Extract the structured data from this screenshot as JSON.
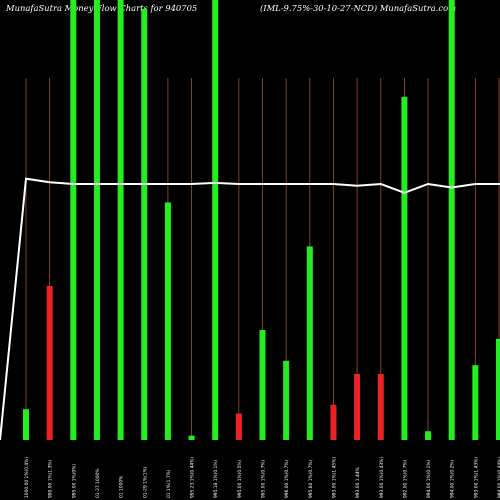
{
  "header": {
    "left_title": "MunafaSutra  Money Flow  Charts for 940705",
    "right_title": "(IML-9.75%-30-10-27-NCD) MunafaSutra.com"
  },
  "colors": {
    "background": "#000000",
    "up": "#22ee22",
    "down": "#ee2222",
    "gridline": "#a0522d",
    "price_line": "#ffffff"
  },
  "chart_data": {
    "type": "bar",
    "title": "MunafaSutra  Money Flow  Charts for 940705",
    "ylim": [
      0,
      100
    ],
    "categories": [
      "1000.00 1%(0.4%)",
      "990.00 1%(1.3%)",
      "995.00 1%(0%)",
      "01-27 1000%",
      "01 1000%",
      "01-29 1%(1%)",
      "01 1%(1.7%)",
      "995.23 1%(0.44%)",
      "995.18 1%(0.1%)",
      "995.00 1%(0.5%)",
      "995.00 1%(0.7%)",
      "996.00 1%(0.7%)",
      "995.80 1%(0.7%)",
      "993.00 1%(1.45%)",
      "993.00 1.44%",
      "993.00 1%(0.43%)",
      "992.00 1%(0.7%)",
      "994.00 1%(0.1%)",
      "994.00 1%(0.2%)",
      "993.00 1%(1.43%)",
      "994.00 1%(0.44%)",
      "993.00 1%(0%)"
    ],
    "series": [
      {
        "values": [
          7,
          35,
          100,
          100,
          100,
          98,
          54,
          1,
          100,
          6,
          25,
          18,
          44,
          8,
          15,
          15,
          78,
          2,
          100,
          17,
          23,
          56
        ],
        "directions": [
          "up",
          "down",
          "up",
          "up",
          "up",
          "up",
          "up",
          "up",
          "up",
          "down",
          "up",
          "up",
          "up",
          "down",
          "down",
          "down",
          "up",
          "up",
          "up",
          "up",
          "up",
          "up"
        ]
      },
      {
        "values": [
          74,
          73,
          72.5,
          72.5,
          72.5,
          72.5,
          72.5,
          72.5,
          72.8,
          72.5,
          72.5,
          72.5,
          72.5,
          72.5,
          72,
          72.5,
          70,
          72.5,
          71.5,
          72.5,
          72.5,
          72.5
        ]
      }
    ],
    "x_start_value": 0,
    "grid": "vertical"
  }
}
